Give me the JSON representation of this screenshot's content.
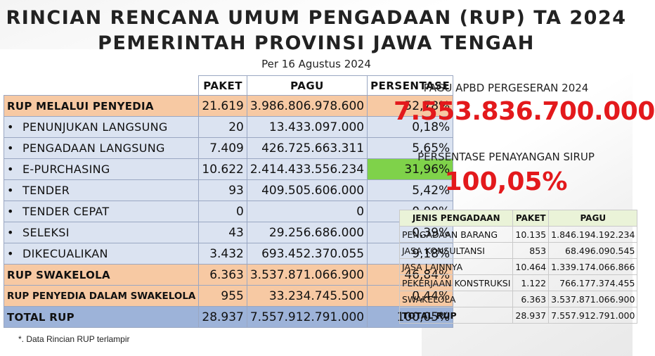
{
  "header": {
    "title_line1": "RINCIAN RENCANA UMUM PENGADAAN (RUP) TA 2024",
    "title_line2": "PEMERINTAH PROVINSI JAWA TENGAH",
    "subtitle": "Per 16 Agustus 2024"
  },
  "main_table": {
    "headers": [
      "PAKET",
      "PAGU",
      "PERSENTASE"
    ],
    "rows": [
      {
        "label": "RUP MELALUI PENYEDIA",
        "paket": "21.619",
        "pagu": "3.986.806.978.600",
        "persen": "52,78%"
      },
      {
        "label": "PENUNJUKAN LANGSUNG",
        "paket": "20",
        "pagu": "13.433.097.000",
        "persen": "0,18%"
      },
      {
        "label": "PENGADAAN LANGSUNG",
        "paket": "7.409",
        "pagu": "426.725.663.311",
        "persen": "5,65%"
      },
      {
        "label": "E-PURCHASING",
        "paket": "10.622",
        "pagu": "2.414.433.556.234",
        "persen": "31,96%"
      },
      {
        "label": "TENDER",
        "paket": "93",
        "pagu": "409.505.606.000",
        "persen": "5,42%"
      },
      {
        "label": "TENDER CEPAT",
        "paket": "0",
        "pagu": "0",
        "persen": "0,00%"
      },
      {
        "label": "SELEKSI",
        "paket": "43",
        "pagu": "29.256.686.000",
        "persen": "0,39%"
      },
      {
        "label": "DIKECUALIKAN",
        "paket": "3.432",
        "pagu": "693.452.370.055",
        "persen": "9,18%"
      },
      {
        "label": "RUP SWAKELOLA",
        "paket": "6.363",
        "pagu": "3.537.871.066.900",
        "persen": "46,84%"
      },
      {
        "label": "RUP PENYEDIA DALAM SWAKELOLA",
        "paket": "955",
        "pagu": "33.234.745.500",
        "persen": "0,44%"
      },
      {
        "label": "TOTAL RUP",
        "paket": "28.937",
        "pagu": "7.557.912.791.000",
        "persen": "100,05%"
      }
    ],
    "bullet": "•"
  },
  "footnote": "*. Data Rincian RUP terlampir",
  "pagu_apbd": {
    "label": "PAGU APBD PERGESERAN 2024",
    "value": "7.553.836.700.000"
  },
  "persentase": {
    "label": "PERSENTASE PENAYANGAN SIRUP",
    "value": "100,05%"
  },
  "side_table": {
    "headers": [
      "JENIS PENGADAAN",
      "PAKET",
      "PAGU"
    ],
    "rows": [
      {
        "jenis": "PENGADAAN BARANG",
        "paket": "10.135",
        "pagu": "1.846.194.192.234"
      },
      {
        "jenis": "JASA KONSULTANSI",
        "paket": "853",
        "pagu": "68.496.090.545"
      },
      {
        "jenis": "JASA LAINNYA",
        "paket": "10.464",
        "pagu": "1.339.174.066.866"
      },
      {
        "jenis": "PEKERJAAN KONSTRUKSI",
        "paket": "1.122",
        "pagu": "766.177.374.455"
      },
      {
        "jenis": "SWAKELOLA",
        "paket": "6.363",
        "pagu": "3.537.871.066.900"
      },
      {
        "jenis": "TOTAL RUP",
        "paket": "28.937",
        "pagu": "7.557.912.791.000"
      }
    ]
  },
  "colors": {
    "category_row": "#f7c9a3",
    "sub_row": "#dbe3f1",
    "total_row": "#9db3d9",
    "highlight": "#7fd24a",
    "accent_red": "#e3191c",
    "side_header": "#eaf3d8"
  }
}
